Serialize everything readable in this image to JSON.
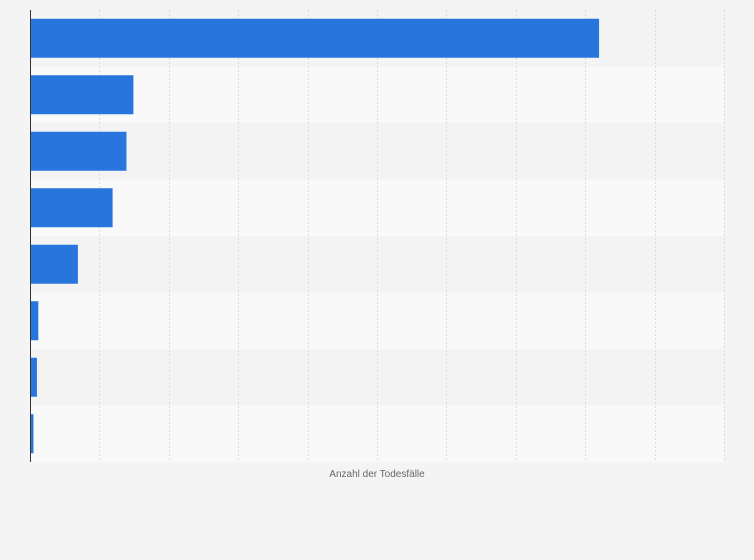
{
  "chart_data": {
    "type": "bar",
    "orientation": "horizontal",
    "categories": [
      "",
      "",
      "",
      "",
      "",
      "",
      "",
      ""
    ],
    "values": [
      8200,
      1490,
      1390,
      1190,
      690,
      120,
      100,
      50
    ],
    "xlabel": "Anzahl der Todesfälle",
    "ylabel": "",
    "xlim": [
      0,
      10000
    ],
    "x_gridlines": [
      0,
      1000,
      2000,
      3000,
      4000,
      5000,
      6000,
      7000,
      8000,
      9000,
      10000
    ],
    "grid": true,
    "legend": "none",
    "colors": {
      "bar": "#2876dd",
      "band_light": "#f9f9f9",
      "band_dark": "#f3f3f3",
      "gridline": "#dddddd",
      "axis": "#333333",
      "background": "#f4f4f4"
    }
  }
}
